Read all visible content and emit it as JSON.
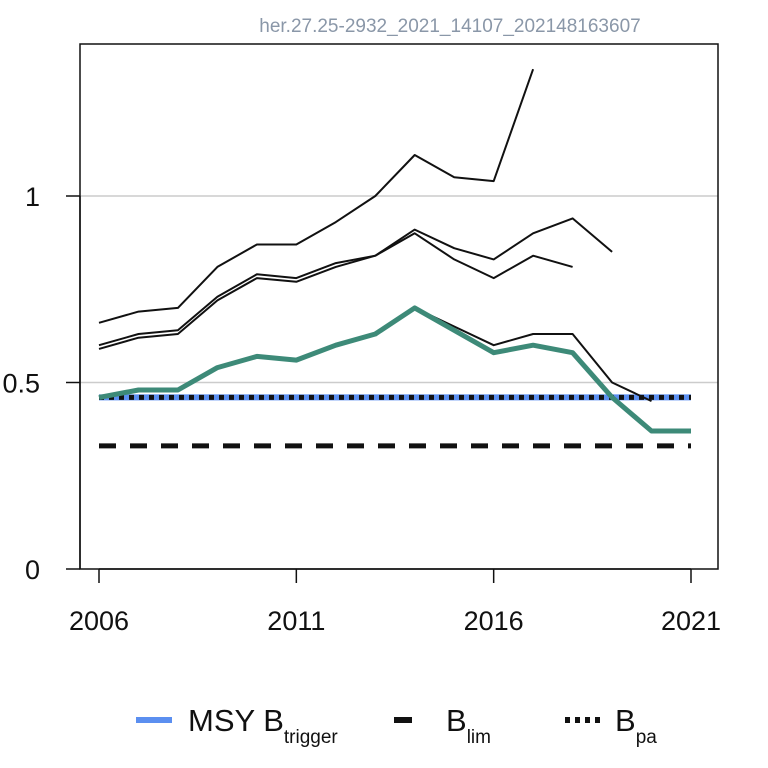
{
  "header_id": "her.27.25-2932_2021_14107_202148163607",
  "chart_data": {
    "type": "line",
    "xlim": [
      2006,
      2021
    ],
    "ylim": [
      0,
      1.35
    ],
    "x_ticks": [
      2006,
      2011,
      2016,
      2021
    ],
    "y_ticks": [
      0,
      0.5,
      1
    ],
    "y_tick_labels": [
      "0",
      "0.5",
      "1"
    ],
    "x_tick_labels": [
      "2006",
      "2011",
      "2016",
      "2021"
    ],
    "gridlines_y": [
      0.5,
      1
    ],
    "colors": {
      "main_series": "#3d8a78",
      "retro_series": "#111111",
      "msy_btrigger": "#5b8ff0",
      "blim": "#111111",
      "bpa": "#111111",
      "grid": "#cccccc"
    },
    "series": [
      {
        "x": [
          2006,
          2007,
          2008,
          2009,
          2010,
          2011,
          2012,
          2013,
          2014,
          2015,
          2016,
          2017,
          2018,
          2019,
          2020,
          2021
        ],
        "y": [
          0.46,
          0.48,
          0.48,
          0.54,
          0.57,
          0.56,
          0.6,
          0.63,
          0.7,
          0.64,
          0.58,
          0.6,
          0.58,
          0.46,
          0.37,
          0.37
        ]
      },
      {
        "x": [
          2006,
          2007,
          2008,
          2009,
          2010,
          2011,
          2012,
          2013,
          2014,
          2015,
          2016,
          2017,
          2018,
          2019,
          2020
        ],
        "y": [
          0.46,
          0.48,
          0.48,
          0.54,
          0.57,
          0.56,
          0.6,
          0.63,
          0.7,
          0.65,
          0.6,
          0.63,
          0.63,
          0.5,
          0.45
        ]
      },
      {
        "x": [
          2006,
          2007,
          2008,
          2009,
          2010,
          2011,
          2012,
          2013,
          2014,
          2015,
          2016,
          2017,
          2018,
          2019
        ],
        "y": [
          0.6,
          0.63,
          0.64,
          0.73,
          0.79,
          0.78,
          0.82,
          0.84,
          0.91,
          0.86,
          0.83,
          0.9,
          0.94,
          0.85
        ]
      },
      {
        "x": [
          2006,
          2007,
          2008,
          2009,
          2010,
          2011,
          2012,
          2013,
          2014,
          2015,
          2016,
          2017,
          2018
        ],
        "y": [
          0.59,
          0.62,
          0.63,
          0.72,
          0.78,
          0.77,
          0.81,
          0.84,
          0.9,
          0.83,
          0.78,
          0.84,
          0.81
        ]
      },
      {
        "x": [
          2006,
          2007,
          2008,
          2009,
          2010,
          2011,
          2012,
          2013,
          2014,
          2015,
          2016,
          2017
        ],
        "y": [
          0.66,
          0.69,
          0.7,
          0.81,
          0.87,
          0.87,
          0.93,
          1.0,
          1.11,
          1.05,
          1.04,
          1.34
        ]
      }
    ],
    "reference_lines": [
      {
        "style": "solid",
        "y": 0.46
      },
      {
        "style": "dashed",
        "y": 0.33
      },
      {
        "style": "dotted",
        "y": 0.46
      }
    ],
    "legend": {
      "position": "bottom",
      "items": [
        {
          "text": "MSY B",
          "subscript": "trigger",
          "style": "solid",
          "color": "#5b8ff0"
        },
        {
          "text": "B",
          "subscript": "lim",
          "style": "dashed",
          "color": "#111111"
        },
        {
          "text": "B",
          "subscript": "pa",
          "style": "dotted",
          "color": "#111111"
        }
      ]
    }
  }
}
